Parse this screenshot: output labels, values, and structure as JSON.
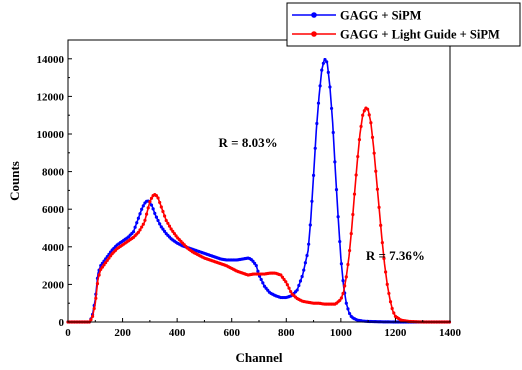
{
  "chart_data": {
    "type": "line",
    "xlabel": "Channel",
    "ylabel": "Counts",
    "xlim": [
      0,
      1400
    ],
    "ylim": [
      0,
      15000
    ],
    "xticks": [
      0,
      200,
      400,
      600,
      800,
      1000,
      1200,
      1400
    ],
    "yticks": [
      0,
      2000,
      4000,
      6000,
      8000,
      10000,
      12000,
      14000
    ],
    "xtick_labels": [
      "0",
      "200",
      "400",
      "600",
      "800",
      "1000",
      "1200",
      "1400"
    ],
    "ytick_labels": [
      "0",
      "2000",
      "4000",
      "6000",
      "8000",
      "10000",
      "12000",
      "14000"
    ],
    "grid": false,
    "legend_position": "top-right",
    "series": [
      {
        "name": "GAGG + SiPM",
        "color": "#0000ff",
        "x": [
          0,
          20,
          40,
          60,
          80,
          90,
          100,
          110,
          120,
          140,
          160,
          180,
          200,
          220,
          240,
          260,
          270,
          280,
          290,
          300,
          310,
          320,
          330,
          340,
          360,
          380,
          400,
          420,
          440,
          460,
          480,
          500,
          520,
          540,
          560,
          580,
          600,
          620,
          640,
          660,
          670,
          680,
          690,
          700,
          720,
          740,
          760,
          780,
          800,
          820,
          840,
          860,
          880,
          890,
          900,
          910,
          920,
          930,
          940,
          950,
          960,
          970,
          980,
          990,
          1000,
          1010,
          1020,
          1030,
          1040,
          1060,
          1080,
          1100,
          1150,
          1200,
          1300,
          1400
        ],
        "y": [
          0,
          0,
          0,
          0,
          0,
          400,
          1200,
          2600,
          3000,
          3400,
          3800,
          4100,
          4300,
          4500,
          4800,
          5600,
          6000,
          6300,
          6450,
          6400,
          6100,
          5700,
          5400,
          5100,
          4700,
          4400,
          4200,
          4050,
          3950,
          3850,
          3750,
          3650,
          3550,
          3450,
          3350,
          3300,
          3300,
          3300,
          3350,
          3400,
          3350,
          3200,
          3000,
          2500,
          1900,
          1550,
          1400,
          1300,
          1300,
          1400,
          1700,
          2500,
          3800,
          5500,
          7800,
          10200,
          12000,
          13400,
          14000,
          13800,
          12500,
          10600,
          8000,
          5600,
          3400,
          1900,
          1000,
          500,
          250,
          100,
          50,
          30,
          10,
          0,
          0,
          0
        ]
      },
      {
        "name": "GAGG + Light Guide + SiPM",
        "color": "#ff0000",
        "x": [
          0,
          20,
          40,
          60,
          80,
          90,
          100,
          110,
          120,
          140,
          160,
          180,
          200,
          220,
          240,
          260,
          280,
          300,
          310,
          320,
          330,
          340,
          350,
          360,
          380,
          400,
          420,
          440,
          460,
          480,
          500,
          520,
          540,
          560,
          580,
          600,
          620,
          640,
          660,
          680,
          700,
          720,
          740,
          760,
          780,
          790,
          800,
          810,
          820,
          840,
          860,
          880,
          900,
          920,
          940,
          960,
          980,
          1000,
          1010,
          1020,
          1030,
          1040,
          1050,
          1060,
          1070,
          1080,
          1090,
          1100,
          1110,
          1120,
          1130,
          1140,
          1150,
          1160,
          1170,
          1180,
          1190,
          1200,
          1220,
          1250,
          1300,
          1400
        ],
        "y": [
          0,
          0,
          0,
          0,
          0,
          300,
          1000,
          2300,
          2800,
          3200,
          3600,
          3900,
          4100,
          4300,
          4500,
          4800,
          5300,
          6400,
          6700,
          6800,
          6600,
          6200,
          5800,
          5400,
          4900,
          4500,
          4200,
          3900,
          3700,
          3550,
          3400,
          3300,
          3200,
          3100,
          3000,
          2850,
          2700,
          2600,
          2500,
          2550,
          2550,
          2550,
          2600,
          2600,
          2500,
          2300,
          2100,
          1800,
          1500,
          1250,
          1100,
          1050,
          1000,
          1000,
          950,
          950,
          950,
          1200,
          1600,
          2400,
          3500,
          5000,
          6800,
          8500,
          10000,
          11000,
          11400,
          11300,
          10600,
          9300,
          7700,
          6100,
          4500,
          3100,
          2000,
          1200,
          600,
          300,
          100,
          30,
          0,
          0
        ]
      }
    ],
    "annotations": [
      {
        "text": "R = 8.03%",
        "x": 660,
        "y": 9300
      },
      {
        "text": "R = 7.36%",
        "x": 1200,
        "y": 3300
      }
    ]
  }
}
